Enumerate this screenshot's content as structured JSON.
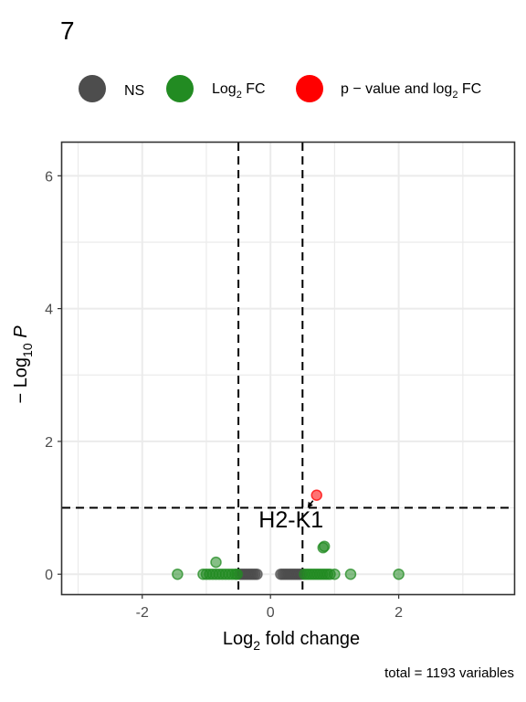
{
  "title": "7",
  "legend": {
    "placement": "top",
    "items": [
      {
        "label": "NS",
        "color": "#4d4d4d"
      },
      {
        "label_base": "Log",
        "label_sub": "2",
        "label_rest": " FC",
        "color": "#228b22"
      },
      {
        "label_base": "p − value and log",
        "label_sub": "2",
        "label_rest": " FC",
        "color": "#ff0000"
      }
    ]
  },
  "caption": "total = 1193 variables",
  "chart_data": {
    "type": "scatter",
    "xlabel": {
      "base": "Log",
      "sub": "2",
      "rest": " fold change"
    },
    "ylabel": {
      "prefix": "− Log",
      "sub": "10",
      "italic": " P"
    },
    "xlim": [
      -3.25,
      3.8
    ],
    "ylim": [
      -0.3,
      6.5
    ],
    "x_ticks": [
      -2,
      0,
      2
    ],
    "x_tick_labels": [
      "-2",
      "0",
      "2"
    ],
    "y_ticks": [
      0,
      2,
      4,
      6
    ],
    "y_tick_labels": [
      "0",
      "2",
      "4",
      "6"
    ],
    "grid": true,
    "fc_cutoff": 0.5,
    "p_cutoff_neglog10": 1.0,
    "series": [
      {
        "key": "ns",
        "color": "#4d4d4d",
        "points": [
          [
            -0.48,
            0
          ],
          [
            -0.45,
            0
          ],
          [
            -0.42,
            0
          ],
          [
            -0.39,
            0
          ],
          [
            -0.36,
            0
          ],
          [
            -0.33,
            0
          ],
          [
            -0.3,
            0
          ],
          [
            -0.27,
            0
          ],
          [
            -0.24,
            0
          ],
          [
            -0.21,
            0
          ],
          [
            0.16,
            0
          ],
          [
            0.19,
            0
          ],
          [
            0.22,
            0
          ],
          [
            0.25,
            0
          ],
          [
            0.28,
            0
          ],
          [
            0.31,
            0
          ],
          [
            0.34,
            0
          ],
          [
            0.37,
            0
          ],
          [
            0.4,
            0
          ],
          [
            0.43,
            0
          ],
          [
            0.46,
            0
          ],
          [
            0.49,
            0
          ]
        ]
      },
      {
        "key": "fc",
        "color": "#228b22",
        "points": [
          [
            -1.45,
            0
          ],
          [
            -1.05,
            0
          ],
          [
            -1.0,
            0
          ],
          [
            -0.95,
            0
          ],
          [
            -0.9,
            0
          ],
          [
            -0.85,
            0
          ],
          [
            -0.8,
            0
          ],
          [
            -0.75,
            0
          ],
          [
            -0.7,
            0
          ],
          [
            -0.65,
            0
          ],
          [
            -0.6,
            0
          ],
          [
            -0.55,
            0
          ],
          [
            -0.52,
            0
          ],
          [
            -0.85,
            0.18
          ],
          [
            0.53,
            0
          ],
          [
            0.57,
            0
          ],
          [
            0.61,
            0
          ],
          [
            0.65,
            0
          ],
          [
            0.69,
            0
          ],
          [
            0.73,
            0
          ],
          [
            0.77,
            0
          ],
          [
            0.81,
            0
          ],
          [
            0.85,
            0
          ],
          [
            0.89,
            0
          ],
          [
            0.93,
            0
          ],
          [
            1.0,
            0
          ],
          [
            1.25,
            0
          ],
          [
            2.0,
            0
          ],
          [
            0.82,
            0.4
          ],
          [
            0.84,
            0.42
          ]
        ]
      },
      {
        "key": "pfc",
        "color": "#ff0000",
        "points": [
          [
            0.72,
            1.19
          ]
        ]
      }
    ],
    "annotations": [
      {
        "text": "H2-K1",
        "x": 0.72,
        "y": 1.19
      }
    ]
  }
}
